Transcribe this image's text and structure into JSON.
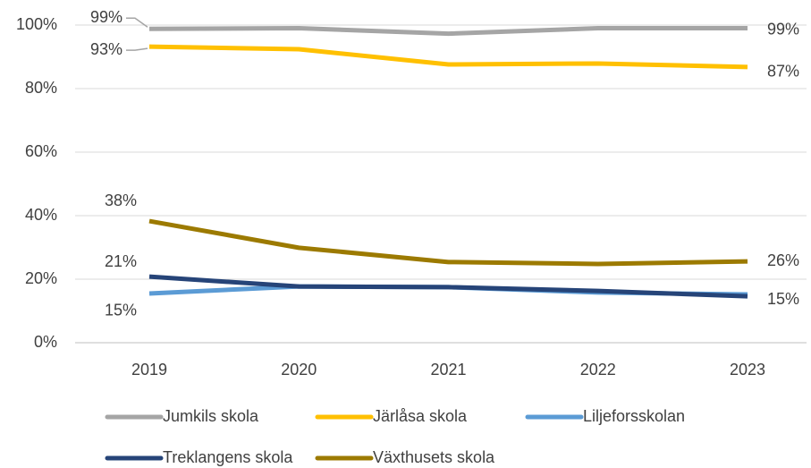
{
  "chart_data": {
    "type": "line",
    "categories": [
      "2019",
      "2020",
      "2021",
      "2022",
      "2023"
    ],
    "series": [
      {
        "name": "Jumkils skola",
        "color": "#a5a5a5",
        "values": [
          98.8,
          99,
          97.3,
          99,
          99
        ],
        "value_labels": [
          "99%",
          null,
          null,
          null,
          "99%"
        ]
      },
      {
        "name": "Järlåsa skola",
        "color": "#ffc000",
        "values": [
          93.2,
          92.4,
          87.6,
          87.9,
          86.8
        ],
        "value_labels": [
          "93%",
          null,
          null,
          null,
          "87%"
        ]
      },
      {
        "name": "Liljeforsskolan",
        "color": "#5b9bd5",
        "values": [
          15.5,
          17.7,
          17.5,
          15.8,
          15.2
        ],
        "value_labels": [
          "15%",
          null,
          null,
          null,
          null
        ]
      },
      {
        "name": "Treklangens skola",
        "color": "#264478",
        "values": [
          20.8,
          17.7,
          17.5,
          16.3,
          14.6
        ],
        "value_labels": [
          "21%",
          null,
          null,
          null,
          "15%"
        ]
      },
      {
        "name": "Växthusets skola",
        "color": "#9c7a00",
        "values": [
          38.3,
          29.9,
          25.4,
          24.8,
          25.6
        ],
        "value_labels": [
          "38%",
          null,
          null,
          null,
          "26%"
        ]
      }
    ],
    "ylim": [
      0,
      100
    ],
    "yticks": [
      {
        "value": 0,
        "label": "0%"
      },
      {
        "value": 20,
        "label": "20%"
      },
      {
        "value": 40,
        "label": "40%"
      },
      {
        "value": 60,
        "label": "60%"
      },
      {
        "value": 80,
        "label": "80%"
      },
      {
        "value": 100,
        "label": "100%"
      }
    ],
    "grid": true,
    "legend": "bottom"
  }
}
